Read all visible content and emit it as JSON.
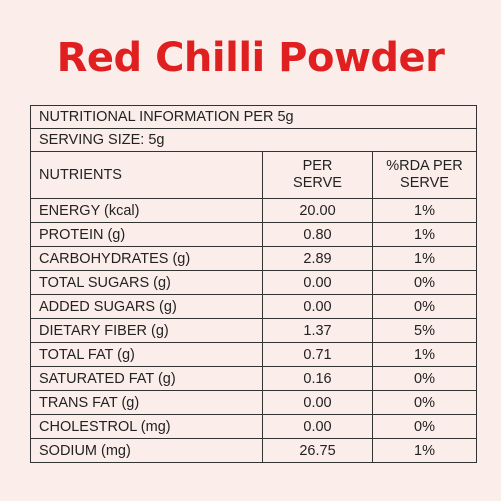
{
  "title": "Red Chilli Powder",
  "info_line": "NUTRITIONAL INFORMATION PER 5g",
  "serving_line": "SERVING SIZE: 5g",
  "headers": {
    "nutrients": "NUTRIENTS",
    "per_serve_1": "PER",
    "per_serve_2": "SERVE",
    "rda_1": "%RDA PER",
    "rda_2": "SERVE"
  },
  "rows": [
    {
      "name": "ENERGY (kcal)",
      "value": "20.00",
      "rda": "1%"
    },
    {
      "name": "PROTEIN (g)",
      "value": "0.80",
      "rda": "1%"
    },
    {
      "name": "CARBOHYDRATES (g)",
      "value": "2.89",
      "rda": "1%"
    },
    {
      "name": "TOTAL SUGARS (g)",
      "value": "0.00",
      "rda": "0%"
    },
    {
      "name": "ADDED SUGARS (g)",
      "value": "0.00",
      "rda": "0%"
    },
    {
      "name": "DIETARY FIBER (g)",
      "value": "1.37",
      "rda": "5%"
    },
    {
      "name": "TOTAL FAT (g)",
      "value": "0.71",
      "rda": "1%"
    },
    {
      "name": "SATURATED FAT (g)",
      "value": "0.16",
      "rda": "0%"
    },
    {
      "name": "TRANS FAT (g)",
      "value": "0.00",
      "rda": "0%"
    },
    {
      "name": "CHOLESTROL (mg)",
      "value": "0.00",
      "rda": "0%"
    },
    {
      "name": "SODIUM (mg)",
      "value": "26.75",
      "rda": "1%"
    }
  ],
  "colors": {
    "title": "#e02020",
    "background": "#fbeeea",
    "border": "#333333"
  }
}
